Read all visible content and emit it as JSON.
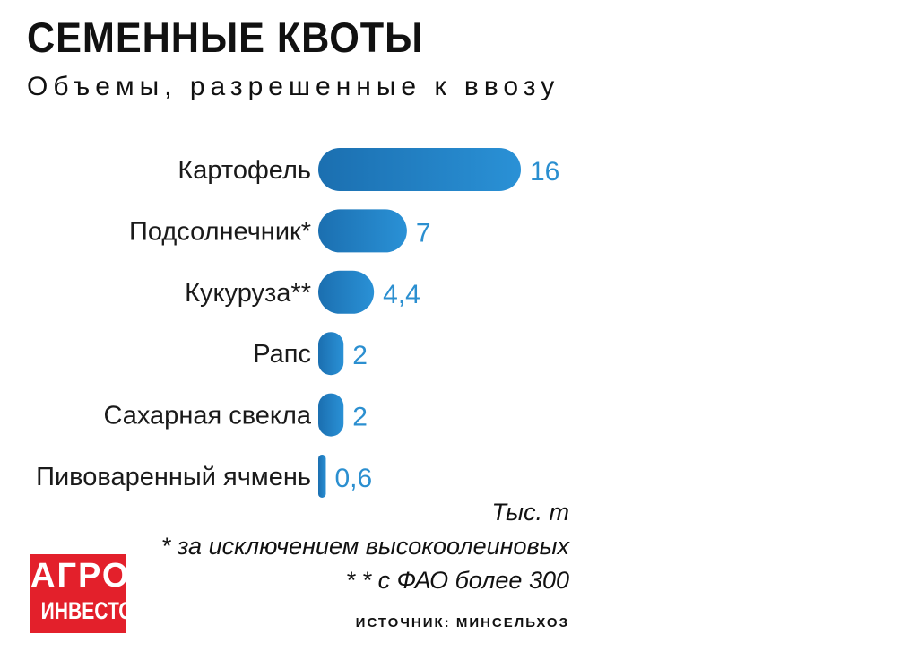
{
  "chart_data": {
    "type": "bar",
    "orientation": "horizontal",
    "title": "СЕМЕННЫЕ КВОТЫ",
    "subtitle": "Объемы, разрешенные к ввозу",
    "categories": [
      "Картофель",
      "Подсолнечник*",
      "Кукуруза**",
      "Рапс",
      "Сахарная свекла",
      "Пивоваренный ячмень"
    ],
    "values": [
      16,
      7,
      4.4,
      2,
      2,
      0.6
    ],
    "value_labels": [
      "16",
      "7",
      "4,4",
      "2",
      "2",
      "0,6"
    ],
    "unit": "Тыс. т",
    "xlim": [
      0,
      16
    ],
    "grid": false,
    "legend": "none",
    "bar_color_start": "#1b6fb0",
    "bar_color_end": "#2a91d6",
    "value_label_color": "#2b8fd0"
  },
  "notes": {
    "unit": "Тыс. т",
    "footnote_1": "* за исключением высокоолеиновых",
    "footnote_2": "* * с ФАО более 300",
    "source": "ИСТОЧНИК: МИНСЕЛЬХОЗ"
  },
  "logo": {
    "line_1": "АГРО",
    "line_2": "ИНВЕСТОР",
    "color": "#e3202b"
  }
}
